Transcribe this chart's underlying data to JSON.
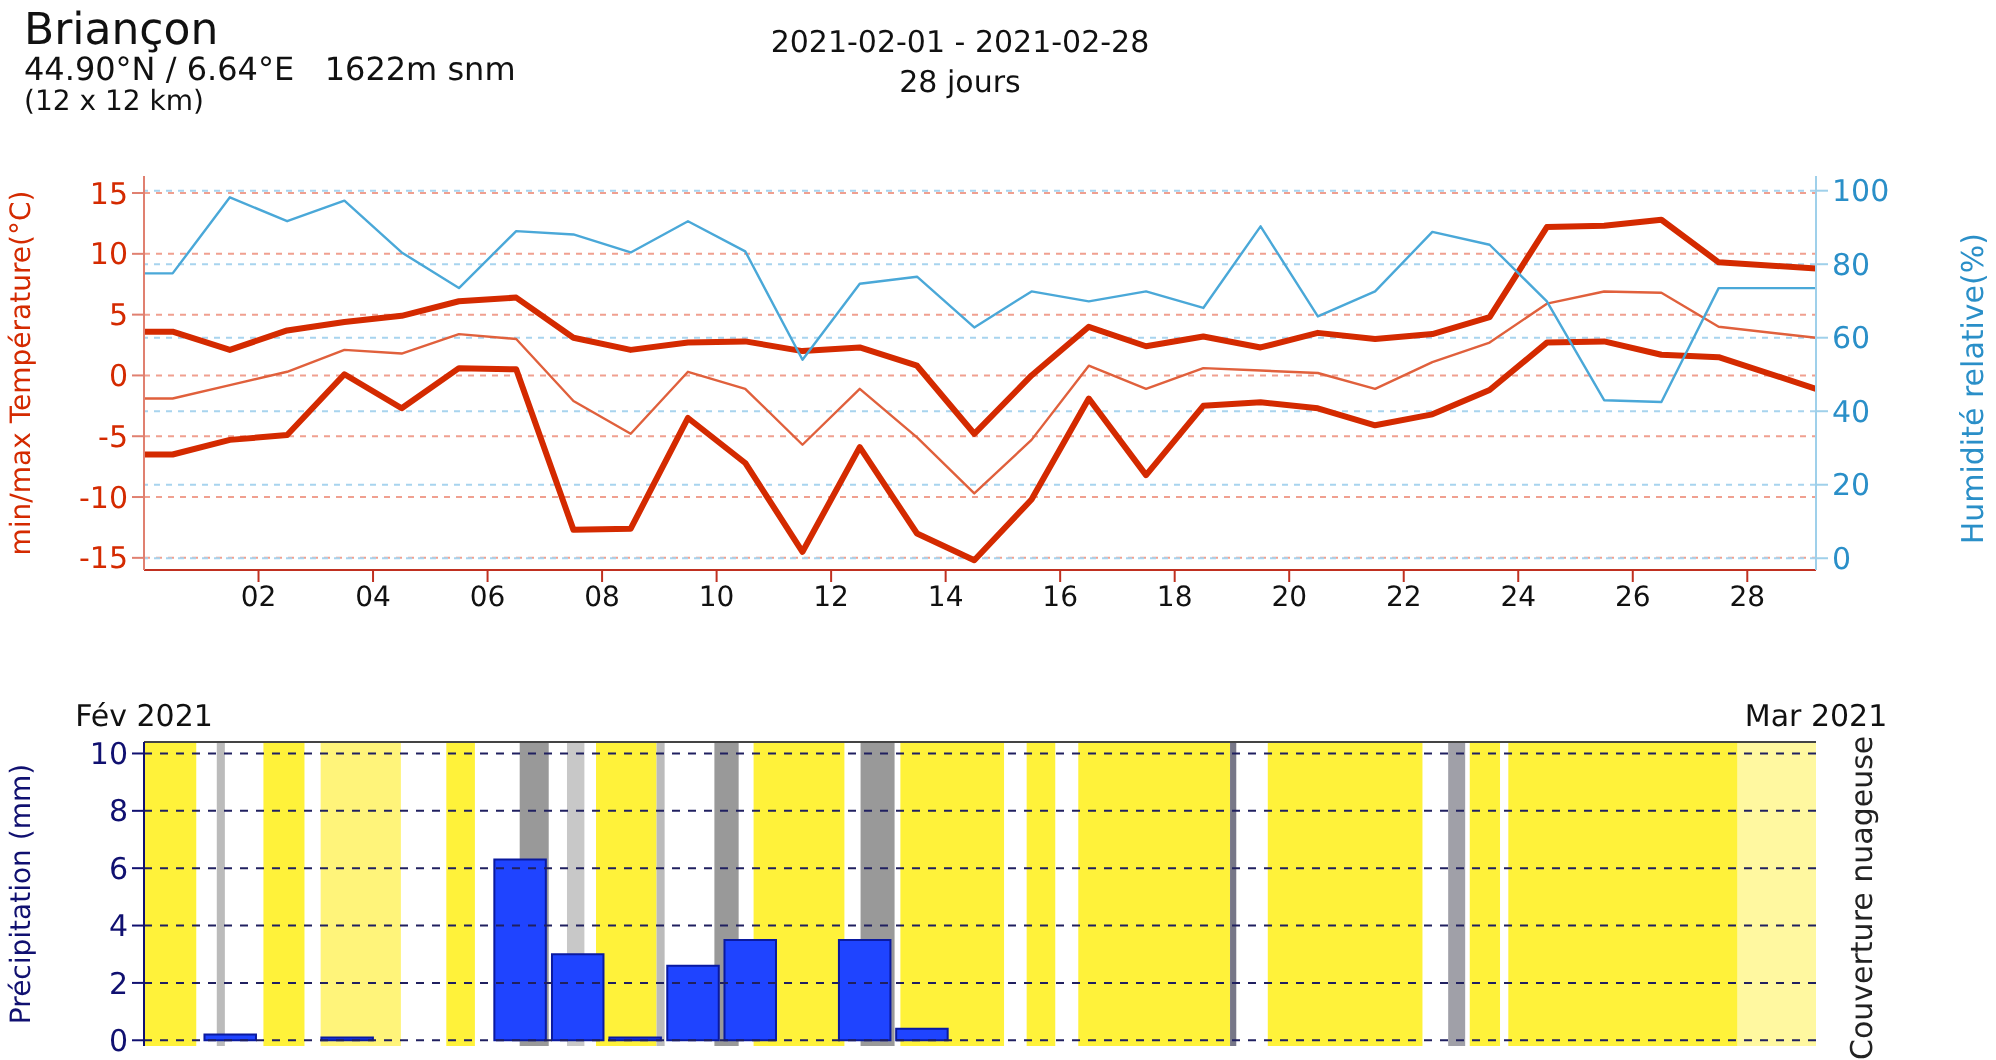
{
  "chart_data": [
    {
      "type": "line",
      "title": "Briançon",
      "subtitle": "44.90°N / 6.64°E   1622m snm",
      "annotations": [
        "(12 x 12 km)",
        "2021-02-01 - 2021-02-28",
        "28 jours"
      ],
      "ylabel": "min/max Température(°C)",
      "y2label": "Humidité relative(%)",
      "x": [
        0,
        0.5,
        1.5,
        2.5,
        3.5,
        4.5,
        5.5,
        6.5,
        7.5,
        8.5,
        9.5,
        10.5,
        11.5,
        12.5,
        13.5,
        14.5,
        15.5,
        16.5,
        17.5,
        18.5,
        19.5,
        20.5,
        21.5,
        22.5,
        23.5,
        24.5,
        25.5,
        26.5,
        27.5,
        29.2
      ],
      "series": [
        {
          "color": "#d42a00",
          "values": [
            3.6,
            3.6,
            2.1,
            3.7,
            4.4,
            4.9,
            6.1,
            6.4,
            3.1,
            2.1,
            2.7,
            2.8,
            2.0,
            2.3,
            0.8,
            -4.8,
            0.0,
            4.0,
            2.4,
            3.2,
            2.3,
            3.5,
            3.0,
            3.4,
            4.8,
            12.2,
            12.3,
            12.8,
            9.3,
            8.8
          ]
        },
        {
          "color": "#e0603c",
          "values": [
            -1.9,
            -1.9,
            -0.8,
            0.3,
            2.1,
            1.8,
            3.4,
            3.0,
            -2.1,
            -4.8,
            0.3,
            -1.1,
            -5.7,
            -1.1,
            -5.1,
            -9.7,
            -5.3,
            0.8,
            -1.1,
            0.6,
            0.4,
            0.2,
            -1.1,
            1.1,
            2.7,
            5.9,
            6.9,
            6.8,
            4.0,
            3.1
          ]
        },
        {
          "color": "#d42a00",
          "values": [
            -6.5,
            -6.5,
            -5.3,
            -4.9,
            0.1,
            -2.7,
            0.6,
            0.5,
            -12.7,
            -12.6,
            -3.5,
            -7.2,
            -14.5,
            -5.9,
            -13.0,
            -15.2,
            -10.2,
            -1.9,
            -8.2,
            -2.5,
            -2.2,
            -2.7,
            -4.1,
            -3.2,
            -1.2,
            2.7,
            2.8,
            1.7,
            1.5,
            -1.1
          ]
        },
        {
          "color": "#4aa8d8",
          "axis": "y2",
          "values": [
            77.5,
            77.5,
            98.2,
            91.7,
            97.3,
            83.2,
            73.5,
            89.0,
            88.1,
            83.2,
            91.7,
            83.5,
            54.0,
            74.7,
            76.6,
            62.8,
            72.6,
            69.9,
            72.6,
            68.1,
            90.3,
            65.8,
            72.6,
            88.8,
            85.3,
            69.9,
            43.0,
            42.5,
            73.5,
            73.5
          ]
        }
      ],
      "xlim": [
        0,
        29.2
      ],
      "xticks": [
        {
          "value": 2,
          "label": "02"
        },
        {
          "value": 4,
          "label": "04"
        },
        {
          "value": 6,
          "label": "06"
        },
        {
          "value": 8,
          "label": "08"
        },
        {
          "value": 10,
          "label": "10"
        },
        {
          "value": 12,
          "label": "12"
        },
        {
          "value": 14,
          "label": "14"
        },
        {
          "value": 16,
          "label": "16"
        },
        {
          "value": 18,
          "label": "18"
        },
        {
          "value": 20,
          "label": "20"
        },
        {
          "value": 22,
          "label": "22"
        },
        {
          "value": 24,
          "label": "24"
        },
        {
          "value": 26,
          "label": "26"
        },
        {
          "value": 28,
          "label": "28"
        }
      ],
      "ylim": [
        -16,
        16.4
      ],
      "yticks": [
        -15,
        -10,
        -5,
        0,
        5,
        10,
        15
      ],
      "y2lim": [
        -3.2,
        104
      ],
      "y2ticks": [
        0,
        20,
        40,
        60,
        80,
        100
      ],
      "grid": "y",
      "marker": "none",
      "line_style": "solid"
    },
    {
      "type": "bar",
      "ylabel": "Précipitation (mm)",
      "y2label": "Couverture nuageuse",
      "x": [
        "2021-02-02T11:00",
        "2021-02-04T10:00",
        "2021-02-07T07:30",
        "2021-02-08T06:40",
        "2021-02-09T05:45",
        "2021-02-10T05:00",
        "2021-02-11T04:00",
        "2021-02-13T02:00",
        "2021-02-14T01:00"
      ],
      "values": [
        0.2,
        0.1,
        6.3,
        3.0,
        0.1,
        2.6,
        3.5,
        3.5,
        0.4
      ],
      "color": "#1f44ff",
      "xlim": [
        "2021-02-01",
        "2021-03-01"
      ],
      "xticks": [
        {
          "value": "2021-02-01",
          "label": "Fév 2021"
        },
        {
          "value": "2021-03-01",
          "label": "Mar 2021"
        }
      ],
      "ylim": [
        -0.2,
        10.4
      ],
      "yticks": [
        0,
        2,
        4,
        6,
        8,
        10
      ],
      "grid": "y",
      "bands": [
        {
          "axis": "x",
          "from": "2021-02-01T00:00",
          "to": "2021-02-01T21:00",
          "color": "#fff23a"
        },
        {
          "axis": "x",
          "from": "2021-02-02T05:15",
          "to": "2021-02-02T08:30",
          "color": "#bbbbbb"
        },
        {
          "axis": "x",
          "from": "2021-02-03T00:00",
          "to": "2021-02-03T16:30",
          "color": "#fff23a"
        },
        {
          "axis": "x",
          "from": "2021-02-03T23:00",
          "to": "2021-02-05T07:15",
          "color": "#fff47a"
        },
        {
          "axis": "x",
          "from": "2021-02-06T01:30",
          "to": "2021-02-06T13:00",
          "color": "#fff23a"
        },
        {
          "axis": "x",
          "from": "2021-02-07T07:00",
          "to": "2021-02-07T18:40",
          "color": "#999999"
        },
        {
          "axis": "x",
          "from": "2021-02-08T02:00",
          "to": "2021-02-08T09:00",
          "color": "#c8c8c8"
        },
        {
          "axis": "x",
          "from": "2021-02-08T13:40",
          "to": "2021-02-09T14:00",
          "color": "#fff23a"
        },
        {
          "axis": "x",
          "from": "2021-02-09T14:00",
          "to": "2021-02-09T17:15",
          "color": "#bbbbbb"
        },
        {
          "axis": "x",
          "from": "2021-02-10T13:15",
          "to": "2021-02-10T23:00",
          "color": "#999999"
        },
        {
          "axis": "x",
          "from": "2021-02-11T05:00",
          "to": "2021-02-12T17:30",
          "color": "#fff23a"
        },
        {
          "axis": "x",
          "from": "2021-02-13T00:00",
          "to": "2021-02-13T13:40",
          "color": "#999999"
        },
        {
          "axis": "x",
          "from": "2021-02-13T16:00",
          "to": "2021-02-15T09:40",
          "color": "#fff23a"
        },
        {
          "axis": "x",
          "from": "2021-02-15T18:45",
          "to": "2021-02-16T06:15",
          "color": "#fff23a"
        },
        {
          "axis": "x",
          "from": "2021-02-16T15:30",
          "to": "2021-02-19T04:30",
          "color": "#fff23a"
        },
        {
          "axis": "x",
          "from": "2021-02-19T04:30",
          "to": "2021-02-19T07:00",
          "color": "#777788"
        },
        {
          "axis": "x",
          "from": "2021-02-19T19:40",
          "to": "2021-02-22T09:50",
          "color": "#fff23a"
        },
        {
          "axis": "x",
          "from": "2021-02-22T20:10",
          "to": "2021-02-23T03:00",
          "color": "#a0a0a8"
        },
        {
          "axis": "x",
          "from": "2021-02-23T04:50",
          "to": "2021-02-23T17:00",
          "color": "#fff23a"
        },
        {
          "axis": "x",
          "from": "2021-02-23T20:20",
          "to": "2021-02-27T16:30",
          "color": "#fff23a"
        },
        {
          "axis": "x",
          "from": "2021-02-27T16:30",
          "to": "2021-03-01T00:00",
          "color": "#fff8a0"
        }
      ]
    }
  ]
}
